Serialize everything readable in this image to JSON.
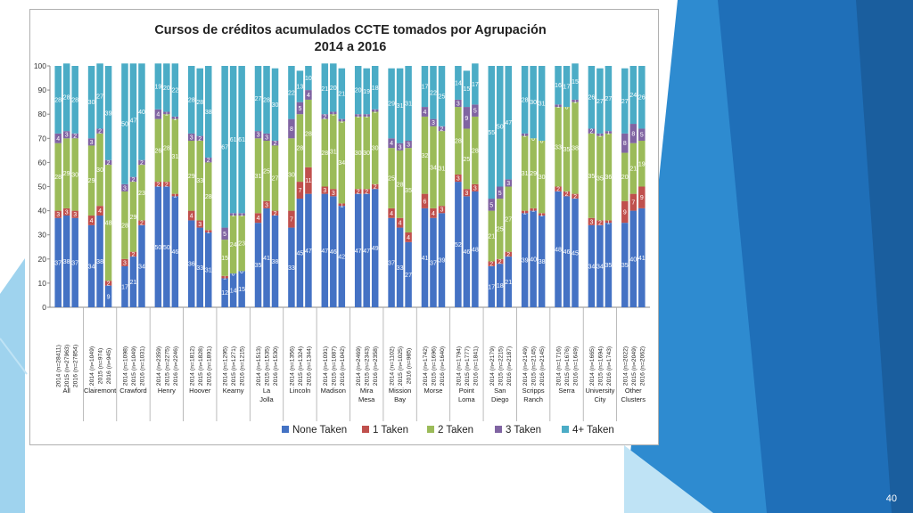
{
  "slide": {
    "page_number": "40"
  },
  "chart_data": {
    "type": "bar",
    "stacked": true,
    "title": "Cursos de créditos acumulados CCTE tomados por Agrupación",
    "subtitle": "2014 a 2016",
    "ylim": [
      0,
      100
    ],
    "yticks": [
      "0",
      "10",
      "20",
      "30",
      "40",
      "50",
      "60",
      "70",
      "80",
      "90",
      "100"
    ],
    "legend_position": "bottom",
    "grid": false,
    "series": [
      {
        "name": "None Taken",
        "color": "#4472C4"
      },
      {
        "name": "1 Taken",
        "color": "#C0504D"
      },
      {
        "name": "2 Taken",
        "color": "#9BBB59"
      },
      {
        "name": "3 Taken",
        "color": "#8064A2"
      },
      {
        "name": "4+ Taken",
        "color": "#4BACC6"
      }
    ],
    "groups": [
      {
        "name": "All",
        "bars": [
          {
            "label": "2014 (n=28411)",
            "values": [
              37,
              3,
              28,
              4,
              28
            ]
          },
          {
            "label": "2015 (n=27963)",
            "values": [
              38,
              3,
              29,
              3,
              28
            ]
          },
          {
            "label": "2016 (n=27854)",
            "values": [
              37,
              3,
              30,
              2,
              28
            ]
          }
        ]
      },
      {
        "name": "Clairemont",
        "bars": [
          {
            "label": "2014 (n=1049)",
            "values": [
              34,
              4,
              29,
              3,
              30
            ]
          },
          {
            "label": "2015 (n=974)",
            "values": [
              38,
              4,
              30,
              2,
              27
            ]
          },
          {
            "label": "2016 (n=945)",
            "values": [
              9,
              2,
              48,
              2,
              39
            ]
          }
        ]
      },
      {
        "name": "Crawford",
        "bars": [
          {
            "label": "2014 (n=1098)",
            "values": [
              17,
              3,
              28,
              3,
              50
            ]
          },
          {
            "label": "2015 (n=1049)",
            "values": [
              21,
              2,
              29,
              2,
              47
            ]
          },
          {
            "label": "2016 (n=1031)",
            "values": [
              34,
              2,
              23,
              2,
              40
            ]
          }
        ]
      },
      {
        "name": "Henry",
        "bars": [
          {
            "label": "2014 (n=2359)",
            "values": [
              50,
              2,
              26,
              4,
              19
            ]
          },
          {
            "label": "2015 (n=2275)",
            "values": [
              50,
              2,
              28,
              1,
              20
            ]
          },
          {
            "label": "2016 (n=2246)",
            "values": [
              46,
              1,
              31,
              1,
              22
            ]
          }
        ]
      },
      {
        "name": "Hoover",
        "bars": [
          {
            "label": "2014 (n=1812)",
            "values": [
              36,
              4,
              29,
              3,
              28
            ]
          },
          {
            "label": "2015 (n=1828)",
            "values": [
              33,
              3,
              33,
              2,
              28
            ]
          },
          {
            "label": "2016 (n=1891)",
            "values": [
              31,
              1,
              28,
              2,
              38
            ]
          }
        ]
      },
      {
        "name": "Kearny",
        "bars": [
          {
            "label": "2014 (n=1295)",
            "values": [
              12,
              1,
              15,
              5,
              67
            ]
          },
          {
            "label": "2015 (n=1271)",
            "values": [
              14,
              0,
              24,
              1,
              61
            ]
          },
          {
            "label": "2016 (n=1215)",
            "values": [
              15,
              0,
              23,
              1,
              61
            ]
          }
        ]
      },
      {
        "name": "La Jolla",
        "bars": [
          {
            "label": "2014 (n=1513)",
            "values": [
              35,
              4,
              31,
              3,
              27
            ]
          },
          {
            "label": "2015 (n=1535)",
            "values": [
              41,
              3,
              25,
              3,
              28
            ]
          },
          {
            "label": "2016 (n=1530)",
            "values": [
              38,
              2,
              27,
              2,
              30
            ]
          }
        ]
      },
      {
        "name": "Lincoln",
        "bars": [
          {
            "label": "2014 (n=1356)",
            "values": [
              33,
              7,
              30,
              8,
              22
            ]
          },
          {
            "label": "2015 (n=1324)",
            "values": [
              45,
              7,
              28,
              5,
              13
            ]
          },
          {
            "label": "2016 (n=1344)",
            "values": [
              47,
              11,
              28,
              4,
              10
            ]
          }
        ]
      },
      {
        "name": "Madison",
        "bars": [
          {
            "label": "2014 (n=1091)",
            "values": [
              47,
              3,
              28,
              2,
              21
            ]
          },
          {
            "label": "2015 (n=1087)",
            "values": [
              46,
              3,
              31,
              1,
              20
            ]
          },
          {
            "label": "2016 (n=1042)",
            "values": [
              42,
              1,
              34,
              1,
              21
            ]
          }
        ]
      },
      {
        "name": "Mira Mesa",
        "bars": [
          {
            "label": "2014 (n=2469)",
            "values": [
              47,
              2,
              30,
              1,
              20
            ]
          },
          {
            "label": "2015 (n=2343)",
            "values": [
              47,
              2,
              30,
              1,
              19
            ]
          },
          {
            "label": "2016 (n=2358)",
            "values": [
              49,
              2,
              30,
              1,
              18
            ]
          }
        ]
      },
      {
        "name": "Mission Bay",
        "bars": [
          {
            "label": "2014 (n=1102)",
            "values": [
              37,
              4,
              25,
              4,
              29
            ]
          },
          {
            "label": "2015 (n=1025)",
            "values": [
              33,
              4,
              28,
              3,
              31
            ]
          },
          {
            "label": "2016 (n=985)",
            "values": [
              27,
              4,
              35,
              3,
              31
            ]
          }
        ]
      },
      {
        "name": "Morse",
        "bars": [
          {
            "label": "2014 (n=1742)",
            "values": [
              41,
              6,
              32,
              4,
              17
            ]
          },
          {
            "label": "2015 (n=1696)",
            "values": [
              37,
              4,
              34,
              3,
              22
            ]
          },
          {
            "label": "2016 (n=1640)",
            "values": [
              39,
              3,
              31,
              2,
              25
            ]
          }
        ]
      },
      {
        "name": "Point Loma",
        "bars": [
          {
            "label": "2014 (n=1794)",
            "values": [
              52,
              3,
              28,
              3,
              14
            ]
          },
          {
            "label": "2015 (n=1777)",
            "values": [
              46,
              3,
              25,
              9,
              15
            ]
          },
          {
            "label": "2016 (n=1841)",
            "values": [
              48,
              3,
              28,
              5,
              17
            ]
          }
        ]
      },
      {
        "name": "San Diego",
        "bars": [
          {
            "label": "2014 (n=2179)",
            "values": [
              17,
              2,
              21,
              5,
              55
            ]
          },
          {
            "label": "2015 (n=2215)",
            "values": [
              18,
              2,
              25,
              5,
              50
            ]
          },
          {
            "label": "2016 (n=2187)",
            "values": [
              21,
              2,
              27,
              3,
              47
            ]
          }
        ]
      },
      {
        "name": "Scripps Ranch",
        "bars": [
          {
            "label": "2014 (n=2149)",
            "values": [
              39,
              1,
              31,
              1,
              28
            ]
          },
          {
            "label": "2015 (n=2145)",
            "values": [
              40,
              1,
              29,
              0,
              30
            ]
          },
          {
            "label": "2016 (n=2145)",
            "values": [
              38,
              1,
              30,
              0,
              31
            ]
          }
        ]
      },
      {
        "name": "Serra",
        "bars": [
          {
            "label": "2014 (n=1716)",
            "values": [
              48,
              2,
              33,
              1,
              16
            ]
          },
          {
            "label": "2015 (n=1676)",
            "values": [
              46,
              2,
              35,
              0,
              17
            ]
          },
          {
            "label": "2016 (n=1649)",
            "values": [
              45,
              2,
              38,
              1,
              15
            ]
          }
        ]
      },
      {
        "name": "University City",
        "bars": [
          {
            "label": "2014 (n=1665)",
            "values": [
              34,
              3,
              35,
              2,
              26
            ]
          },
          {
            "label": "2015 (n=1694)",
            "values": [
              34,
              2,
              35,
              1,
              27
            ]
          },
          {
            "label": "2016 (n=1743)",
            "values": [
              35,
              1,
              36,
              1,
              27
            ]
          }
        ]
      },
      {
        "name": "Other Clusters",
        "bars": [
          {
            "label": "2014 (n=2022)",
            "values": [
              35,
              9,
              20,
              8,
              27
            ]
          },
          {
            "label": "2015 (n=2049)",
            "values": [
              40,
              7,
              21,
              8,
              24
            ]
          },
          {
            "label": "2016 (n=2062)",
            "values": [
              41,
              9,
              19,
              5,
              26
            ]
          }
        ]
      }
    ]
  }
}
